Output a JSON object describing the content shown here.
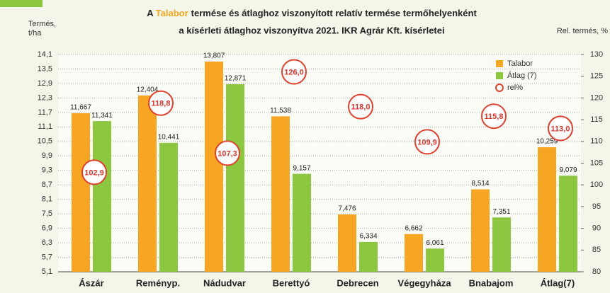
{
  "chart_data": {
    "type": "bar",
    "title": [
      "A",
      "Talabor",
      "termése és átlaghoz viszonyított relatív termése termőhelyenként"
    ],
    "subtitle": "a kísérleti átlaghoz viszonyítva 2021. IKR Agrár Kft. kísérletei",
    "y_label": [
      "Termés,",
      "t/ha"
    ],
    "y2_label": "Rel. termés, %",
    "categories": [
      "Ászár",
      "Reményp.",
      "Nádudvar",
      "Berettyó",
      "Debrecen",
      "Végegyháza",
      "Bnabajom",
      "Átlag(7)"
    ],
    "series": [
      {
        "name": "Talabor",
        "color": "#f6a623",
        "values": [
          11.667,
          12.404,
          13.807,
          11.538,
          7.476,
          6.662,
          8.514,
          10.259
        ],
        "value_labels": [
          "11,667",
          "12,404",
          "13,807",
          "11,538",
          "7,476",
          "6,662",
          "8,514",
          "10,259"
        ]
      },
      {
        "name": "Átlag (7)",
        "color": "#8dc63f",
        "values": [
          11.341,
          10.441,
          12.871,
          9.157,
          6.334,
          6.061,
          7.351,
          9.079
        ],
        "value_labels": [
          "11,341",
          "10,441",
          "12,871",
          "9,157",
          "6,334",
          "6,061",
          "7,351",
          "9,079"
        ]
      },
      {
        "name": "rel%",
        "color": "#e0402d",
        "axis": "y2",
        "marker": "circle",
        "values": [
          102.9,
          118.8,
          107.3,
          126.0,
          118.0,
          109.9,
          115.8,
          113.0
        ],
        "value_labels": [
          "102,9",
          "118,8",
          "107,3",
          "126,0",
          "118,0",
          "109,9",
          "115,8",
          "113,0"
        ]
      }
    ],
    "ylim": [
      5.1,
      14.1
    ],
    "yticks": [
      {
        "value": 5.1,
        "label": "5,1"
      },
      {
        "value": 5.7,
        "label": "5,7"
      },
      {
        "value": 6.3,
        "label": "6,3"
      },
      {
        "value": 6.9,
        "label": "6,9"
      },
      {
        "value": 7.5,
        "label": "7,5"
      },
      {
        "value": 8.1,
        "label": "8,1"
      },
      {
        "value": 8.7,
        "label": "8,7"
      },
      {
        "value": 9.3,
        "label": "9,3"
      },
      {
        "value": 9.9,
        "label": "9,9"
      },
      {
        "value": 10.5,
        "label": "10,5"
      },
      {
        "value": 11.1,
        "label": "11,1"
      },
      {
        "value": 11.7,
        "label": "11,7"
      },
      {
        "value": 12.3,
        "label": "12,3"
      },
      {
        "value": 12.9,
        "label": "12,9"
      },
      {
        "value": 13.5,
        "label": "13,5"
      },
      {
        "value": 14.1,
        "label": "14,1"
      }
    ],
    "y2lim": [
      80,
      130
    ],
    "y2ticks": [
      80,
      85,
      90,
      95,
      100,
      105,
      110,
      115,
      120,
      125,
      130
    ],
    "grid": true,
    "legend": "upper right"
  }
}
